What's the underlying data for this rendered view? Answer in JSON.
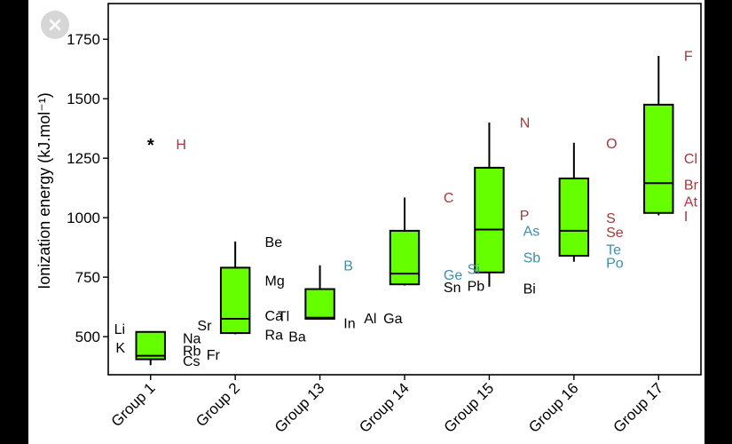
{
  "close_button": {
    "icon": "close-icon",
    "color": "#d6d6d6"
  },
  "chart_data": {
    "type": "boxplot",
    "ylabel": "Ionization energy (kJ.mol⁻¹)",
    "ylim": [
      340,
      1900
    ],
    "yticks": [
      500,
      750,
      1000,
      1250,
      1500,
      1750
    ],
    "grid": false,
    "box_color": "#66ff00",
    "categories": [
      "Group 1",
      "Group 2",
      "Group 13",
      "Group 14",
      "Group 15",
      "Group 16",
      "Group 17"
    ],
    "boxes": [
      {
        "category": "Group 1",
        "whisker_low": 380,
        "q1": 405,
        "median": 420,
        "q3": 520,
        "whisker_high": 520
      },
      {
        "category": "Group 2",
        "whisker_low": 510,
        "q1": 515,
        "median": 575,
        "q3": 790,
        "whisker_high": 900
      },
      {
        "category": "Group 13",
        "whisker_low": 575,
        "q1": 575,
        "median": 580,
        "q3": 700,
        "whisker_high": 800
      },
      {
        "category": "Group 14",
        "whisker_low": 715,
        "q1": 720,
        "median": 765,
        "q3": 945,
        "whisker_high": 1085
      },
      {
        "category": "Group 15",
        "whisker_low": 710,
        "q1": 770,
        "median": 950,
        "q3": 1210,
        "whisker_high": 1400
      },
      {
        "category": "Group 16",
        "whisker_low": 815,
        "q1": 840,
        "median": 945,
        "q3": 1165,
        "whisker_high": 1315
      },
      {
        "category": "Group 17",
        "whisker_low": 1010,
        "q1": 1020,
        "median": 1145,
        "q3": 1475,
        "whisker_high": 1680
      }
    ],
    "outliers": [
      {
        "category": "Group 1",
        "value": 1310,
        "marker": "*"
      }
    ],
    "colors": {
      "black": "#000000",
      "red": "#a23a3a",
      "blue": "#3b8fb0"
    },
    "element_labels": [
      {
        "category": "Group 1",
        "text": "H",
        "value": 1310,
        "color": "red",
        "offset": 0.3
      },
      {
        "category": "Group 1",
        "text": "Li",
        "value": 535,
        "color": "black",
        "offset": -0.3
      },
      {
        "category": "Group 1",
        "text": "K",
        "value": 455,
        "color": "black",
        "offset": -0.3
      },
      {
        "category": "Group 1",
        "text": "Na",
        "value": 495,
        "color": "black",
        "offset": 0.38
      },
      {
        "category": "Group 1",
        "text": "Rb",
        "value": 443,
        "color": "black",
        "offset": 0.38
      },
      {
        "category": "Group 1",
        "text": "Cs",
        "value": 400,
        "color": "black",
        "offset": 0.38
      },
      {
        "category": "Group 1",
        "text": "Fr",
        "value": 425,
        "color": "black",
        "offset": 0.66
      },
      {
        "category": "Group 2",
        "text": "Be",
        "value": 900,
        "color": "black",
        "offset": 0.35
      },
      {
        "category": "Group 2",
        "text": "Mg",
        "value": 738,
        "color": "black",
        "offset": 0.35
      },
      {
        "category": "Group 2",
        "text": "Ca",
        "value": 590,
        "color": "black",
        "offset": 0.35
      },
      {
        "category": "Group 2",
        "text": "Sr",
        "value": 549,
        "color": "black",
        "offset": -0.28
      },
      {
        "category": "Group 2",
        "text": "Ra",
        "value": 509,
        "color": "black",
        "offset": 0.35
      },
      {
        "category": "Group 2",
        "text": "Ba",
        "value": 503,
        "color": "black",
        "offset": 0.63
      },
      {
        "category": "Group 13",
        "text": "B",
        "value": 801,
        "color": "blue",
        "offset": 0.28
      },
      {
        "category": "Group 13",
        "text": "Tl",
        "value": 589,
        "color": "black",
        "offset": -0.36
      },
      {
        "category": "Group 13",
        "text": "In",
        "value": 558,
        "color": "black",
        "offset": 0.28
      },
      {
        "category": "Group 13",
        "text": "Al",
        "value": 578,
        "color": "black",
        "offset": 0.52
      },
      {
        "category": "Group 13",
        "text": "Ga",
        "value": 579,
        "color": "black",
        "offset": 0.75
      },
      {
        "category": "Group 14",
        "text": "C",
        "value": 1086,
        "color": "red",
        "offset": 0.46
      },
      {
        "category": "Group 14",
        "text": "Ge",
        "value": 762,
        "color": "blue",
        "offset": 0.46
      },
      {
        "category": "Group 14",
        "text": "Si",
        "value": 786,
        "color": "blue",
        "offset": 0.74
      },
      {
        "category": "Group 14",
        "text": "Sn",
        "value": 709,
        "color": "black",
        "offset": 0.46
      },
      {
        "category": "Group 14",
        "text": "Pb",
        "value": 716,
        "color": "black",
        "offset": 0.74
      },
      {
        "category": "Group 15",
        "text": "N",
        "value": 1402,
        "color": "red",
        "offset": 0.36
      },
      {
        "category": "Group 15",
        "text": "P",
        "value": 1012,
        "color": "red",
        "offset": 0.36
      },
      {
        "category": "Group 15",
        "text": "As",
        "value": 947,
        "color": "blue",
        "offset": 0.4
      },
      {
        "category": "Group 15",
        "text": "Sb",
        "value": 834,
        "color": "blue",
        "offset": 0.4
      },
      {
        "category": "Group 15",
        "text": "Bi",
        "value": 703,
        "color": "black",
        "offset": 0.4
      },
      {
        "category": "Group 16",
        "text": "O",
        "value": 1314,
        "color": "red",
        "offset": 0.38
      },
      {
        "category": "Group 16",
        "text": "S",
        "value": 1000,
        "color": "red",
        "offset": 0.38
      },
      {
        "category": "Group 16",
        "text": "Se",
        "value": 941,
        "color": "red",
        "offset": 0.38
      },
      {
        "category": "Group 16",
        "text": "Te",
        "value": 869,
        "color": "blue",
        "offset": 0.38
      },
      {
        "category": "Group 16",
        "text": "Po",
        "value": 812,
        "color": "blue",
        "offset": 0.38
      },
      {
        "category": "Group 17",
        "text": "F",
        "value": 1681,
        "color": "red",
        "offset": 0.3
      },
      {
        "category": "Group 17",
        "text": "Cl",
        "value": 1251,
        "color": "red",
        "offset": 0.3
      },
      {
        "category": "Group 17",
        "text": "Br",
        "value": 1140,
        "color": "red",
        "offset": 0.3
      },
      {
        "category": "Group 17",
        "text": "At",
        "value": 1070,
        "color": "red",
        "offset": 0.3
      },
      {
        "category": "Group 17",
        "text": "I",
        "value": 1008,
        "color": "red",
        "offset": 0.3
      }
    ]
  }
}
